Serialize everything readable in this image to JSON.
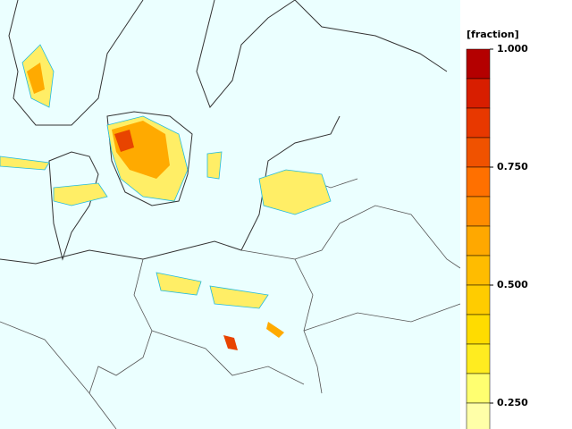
{
  "legend": {
    "title": "[fraction]",
    "range": [
      0.1875,
      1
    ],
    "colors": [
      "#b40000",
      "#d81e00",
      "#e83800",
      "#f05200",
      "#ff7000",
      "#ff8c00",
      "#ffa800",
      "#ffbc00",
      "#ffcc00",
      "#ffdc00",
      "#ffec20",
      "#ffff70",
      "#ffffa8"
    ],
    "ticks": [
      {
        "value": 1,
        "label": "1.000"
      },
      {
        "value": 0.75,
        "label": "0.750"
      },
      {
        "value": 0.5,
        "label": "0.500"
      },
      {
        "value": 0.25,
        "label": "0.250"
      }
    ]
  }
}
